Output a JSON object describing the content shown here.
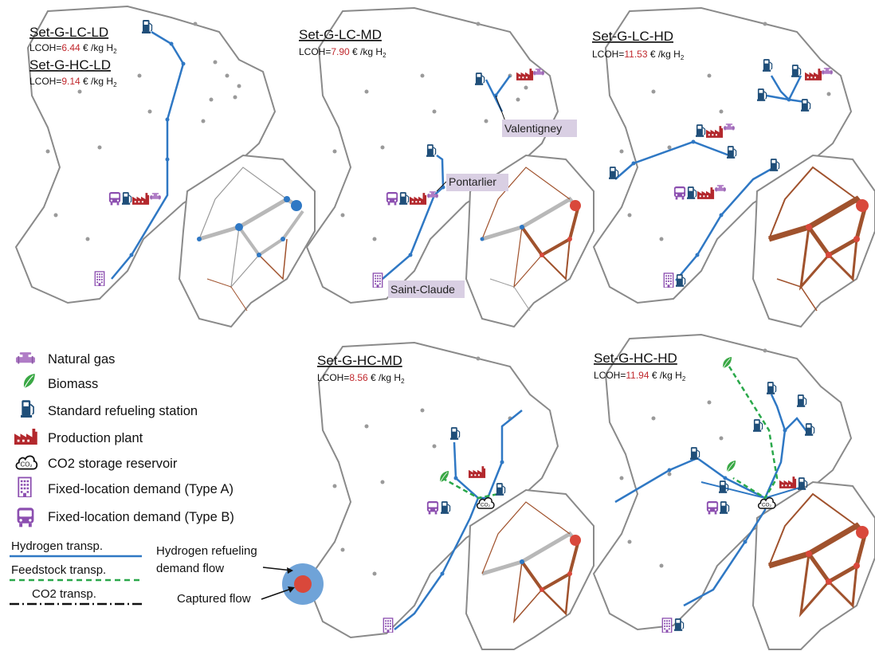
{
  "panels": [
    {
      "title": "Set-G-LC-LD",
      "lcoh_prefix": "LCOH=",
      "lcoh": "6.44",
      "lcoh_suffix": " € /kg H",
      "lcoh_sub": "2"
    },
    {
      "title": "Set-G-HC-LD",
      "lcoh_prefix": "LCOH=",
      "lcoh": "9.14",
      "lcoh_suffix": " € /kg H",
      "lcoh_sub": "2"
    },
    {
      "title": "Set-G-LC-MD",
      "lcoh_prefix": "LCOH=",
      "lcoh": "7.90",
      "lcoh_suffix": " € /kg H",
      "lcoh_sub": "2"
    },
    {
      "title": "Set-G-LC-HD",
      "lcoh_prefix": "LCOH=",
      "lcoh": "11.53",
      "lcoh_suffix": " € /kg H",
      "lcoh_sub": "2"
    },
    {
      "title": "Set-G-HC-MD",
      "lcoh_prefix": "LCOH=",
      "lcoh": "8.56",
      "lcoh_suffix": " € /kg H",
      "lcoh_sub": "2"
    },
    {
      "title": "Set-G-HC-HD",
      "lcoh_prefix": "LCOH=",
      "lcoh": "11.94",
      "lcoh_suffix": " € /kg H",
      "lcoh_sub": "2"
    }
  ],
  "cities": [
    "Valentigney",
    "Pontarlier",
    "Saint-Claude"
  ],
  "legend": {
    "items": [
      {
        "icon": "natural-gas-icon",
        "label": "Natural gas"
      },
      {
        "icon": "biomass-leaf-icon",
        "label": "Biomass"
      },
      {
        "icon": "fuel-pump-icon",
        "label": "Standard refueling station"
      },
      {
        "icon": "factory-icon",
        "label": "Production plant"
      },
      {
        "icon": "co2-cloud-icon",
        "label": "CO2 storage reservoir"
      },
      {
        "icon": "building-icon",
        "label": "Fixed-location demand (Type A)"
      },
      {
        "icon": "bus-icon",
        "label": "Fixed-location demand (Type B)"
      }
    ],
    "lines": [
      {
        "label": "Hydrogen transp.",
        "style": "solid",
        "color": "#2f78c4"
      },
      {
        "label": "Feedstock transp.",
        "style": "dashed",
        "color": "#2aa84a"
      },
      {
        "label": "CO2 transp.",
        "style": "dashdot",
        "color": "#111111"
      }
    ],
    "flow": {
      "outer_label": "Hydrogen refueling",
      "outer_label2": "demand flow",
      "inner_label": "Captured flow"
    }
  },
  "colors": {
    "hydrogen": "#2f78c4",
    "feedstock": "#2aa84a",
    "gas": "#b07cc6",
    "station": "#1f4e79",
    "plant": "#b3282d",
    "demand": "#8c4fb0",
    "border": "#8a8a8a",
    "flow_outer": "#6fa3d8",
    "flow_inner": "#d9483b",
    "captured_net": "#a0522d",
    "uncaptured_net": "#9a9a9a",
    "lcoh_value": "#c0282d",
    "city_bg": "#d9cfe3"
  }
}
